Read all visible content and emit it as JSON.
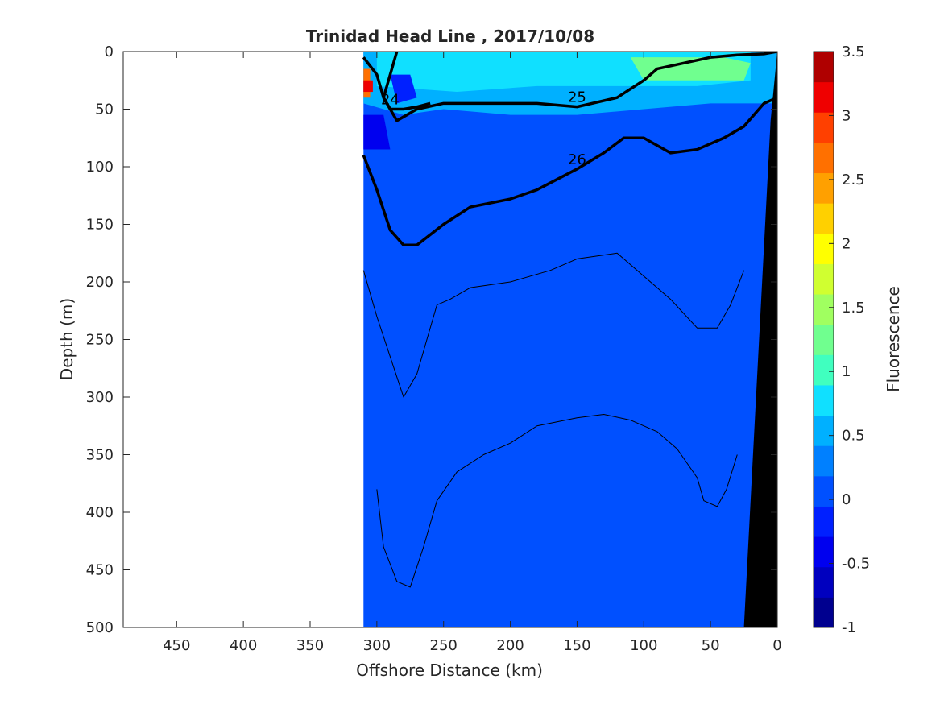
{
  "chart_data": {
    "type": "heatmap",
    "title": "Trinidad Head Line , 2017/10/08",
    "xlabel": "Offshore Distance (km)",
    "ylabel": "Depth (m)",
    "xlim": [
      490,
      0
    ],
    "ylim": [
      0,
      500
    ],
    "x_reversed": true,
    "y_reversed": true,
    "xticks": [
      450,
      400,
      350,
      300,
      250,
      200,
      150,
      100,
      50,
      0
    ],
    "yticks": [
      0,
      50,
      100,
      150,
      200,
      250,
      300,
      350,
      400,
      450,
      500
    ],
    "colorbar": {
      "label": "Fluorescence",
      "range": [
        -1,
        3.5
      ],
      "ticks": [
        "3.5",
        "3",
        "2.5",
        "2",
        "1.5",
        "1",
        "0.5",
        "0",
        "-0.5",
        "-1"
      ],
      "levels": [
        -1,
        -0.75,
        -0.5,
        -0.25,
        0,
        0.25,
        0.5,
        0.75,
        1,
        1.25,
        1.5,
        1.75,
        2,
        2.25,
        2.5,
        2.75,
        3,
        3.25,
        3.5
      ],
      "colors": [
        "#00008f",
        "#0000bf",
        "#0000ef",
        "#0020ff",
        "#0050ff",
        "#0080ff",
        "#00b0ff",
        "#10e0ff",
        "#40ffbf",
        "#70ff8f",
        "#a0ff60",
        "#d0ff30",
        "#ffff00",
        "#ffd000",
        "#ffa000",
        "#ff7000",
        "#ff4000",
        "#ef0000",
        "#af0000"
      ]
    },
    "fluorescence_field": {
      "background_value": 0.1,
      "data_extent_x_km": [
        310,
        0
      ],
      "patches": [
        {
          "x": [
            310,
            300,
            285,
            275,
            265,
            250,
            200,
            150,
            100,
            50,
            0,
            0,
            50,
            100,
            150,
            200,
            250,
            280,
            310
          ],
          "y": [
            0,
            0,
            0,
            0,
            0,
            0,
            0,
            0,
            0,
            0,
            0,
            45,
            45,
            50,
            55,
            55,
            50,
            55,
            45
          ],
          "value": 0.6
        },
        {
          "x": [
            300,
            250,
            200,
            150,
            100,
            50,
            20,
            20,
            60,
            120,
            180,
            240,
            300
          ],
          "y": [
            0,
            0,
            0,
            0,
            0,
            0,
            0,
            25,
            30,
            30,
            30,
            35,
            30
          ],
          "value": 0.9
        },
        {
          "x": [
            110,
            80,
            40,
            20,
            25,
            60,
            100
          ],
          "y": [
            5,
            5,
            5,
            10,
            25,
            25,
            25
          ],
          "value": 1.4
        },
        {
          "x": [
            310,
            305,
            305,
            310
          ],
          "y": [
            15,
            15,
            40,
            40
          ],
          "value": 2.8
        },
        {
          "x": [
            310,
            303,
            303,
            310
          ],
          "y": [
            25,
            25,
            35,
            35
          ],
          "value": 3.3
        },
        {
          "x": [
            310,
            295,
            290,
            310
          ],
          "y": [
            55,
            55,
            85,
            85
          ],
          "value": -0.4
        },
        {
          "x": [
            290,
            275,
            270,
            285
          ],
          "y": [
            20,
            20,
            40,
            45
          ],
          "value": -0.2
        }
      ],
      "shelf_mask_x_km": [
        [
          25,
          500
        ],
        [
          0,
          500
        ],
        [
          0,
          0
        ],
        [
          5,
          60
        ]
      ]
    },
    "density_contours": [
      {
        "level": 24,
        "labeled": true,
        "x": [
          285,
          290,
          295,
          290,
          280,
          270,
          260
        ],
        "y": [
          0,
          20,
          40,
          50,
          50,
          48,
          45
        ]
      },
      {
        "level": 25,
        "labeled": true,
        "x": [
          310,
          300,
          295,
          285,
          270,
          250,
          220,
          180,
          150,
          120,
          100,
          90,
          70,
          50,
          30,
          10,
          0
        ],
        "y": [
          5,
          20,
          40,
          60,
          50,
          45,
          45,
          45,
          48,
          40,
          25,
          15,
          10,
          5,
          3,
          2,
          0
        ]
      },
      {
        "level": 26,
        "labeled": true,
        "x": [
          310,
          300,
          290,
          280,
          270,
          250,
          230,
          200,
          180,
          150,
          130,
          115,
          100,
          80,
          60,
          40,
          25,
          10,
          0
        ],
        "y": [
          90,
          120,
          155,
          168,
          168,
          150,
          135,
          128,
          120,
          102,
          88,
          75,
          75,
          88,
          85,
          75,
          65,
          45,
          40
        ]
      },
      {
        "level": null,
        "labeled": false,
        "x": [
          310,
          300,
          290,
          280,
          270,
          255,
          245,
          230,
          200,
          170,
          150,
          120,
          100,
          80,
          60,
          45,
          35,
          25
        ],
        "y": [
          190,
          230,
          265,
          300,
          280,
          220,
          215,
          205,
          200,
          190,
          180,
          175,
          195,
          215,
          240,
          240,
          220,
          190
        ]
      },
      {
        "level": null,
        "labeled": false,
        "x": [
          300,
          295,
          285,
          275,
          265,
          255,
          240,
          220,
          200,
          180,
          150,
          130,
          110,
          90,
          75,
          60,
          55,
          45,
          38,
          30
        ],
        "y": [
          380,
          430,
          460,
          465,
          430,
          390,
          365,
          350,
          340,
          325,
          318,
          315,
          320,
          330,
          345,
          370,
          390,
          395,
          380,
          350
        ]
      }
    ]
  }
}
